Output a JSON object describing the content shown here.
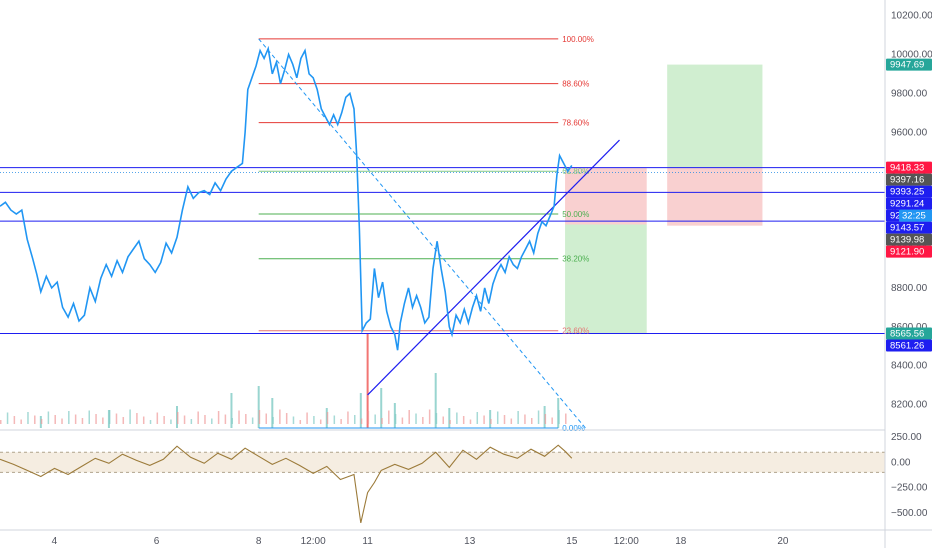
{
  "chart_data": {
    "type": "line",
    "price_scale": {
      "ylim": [
        8080,
        10280
      ],
      "ticks": [
        8200,
        8400,
        8600,
        8800,
        9000,
        9200,
        9400,
        9600,
        9800,
        10000,
        10200
      ],
      "tick_labels": [
        "8200.00",
        "8400.00",
        "8600.00",
        "8800.00",
        "9000.00",
        "9200.00",
        "9400.00",
        "9600.00",
        "9800.00",
        "10000.00",
        "10200.00"
      ]
    },
    "x_axis": {
      "ticks": [
        {
          "at": 4,
          "label": "4"
        },
        {
          "at": 11.5,
          "label": "6"
        },
        {
          "at": 19,
          "label": "8"
        },
        {
          "at": 23,
          "label": "12:00"
        },
        {
          "at": 27,
          "label": "11"
        },
        {
          "at": 34.5,
          "label": "13"
        },
        {
          "at": 42,
          "label": "15"
        },
        {
          "at": 46,
          "label": "12:00"
        },
        {
          "at": 50,
          "label": "18"
        },
        {
          "at": 57.5,
          "label": "20"
        }
      ],
      "xlim": [
        0,
        65
      ]
    },
    "price_series": {
      "name": "price",
      "color": "#2196f3",
      "points": [
        [
          0,
          9220
        ],
        [
          0.4,
          9240
        ],
        [
          0.8,
          9200
        ],
        [
          1.2,
          9180
        ],
        [
          1.6,
          9200
        ],
        [
          2,
          9050
        ],
        [
          2.4,
          8950
        ],
        [
          2.7,
          8870
        ],
        [
          3,
          8780
        ],
        [
          3.4,
          8860
        ],
        [
          3.8,
          8800
        ],
        [
          4.2,
          8830
        ],
        [
          4.6,
          8700
        ],
        [
          5,
          8650
        ],
        [
          5.4,
          8720
        ],
        [
          5.8,
          8630
        ],
        [
          6.2,
          8660
        ],
        [
          6.6,
          8800
        ],
        [
          7,
          8730
        ],
        [
          7.4,
          8850
        ],
        [
          7.8,
          8920
        ],
        [
          8.2,
          8860
        ],
        [
          8.6,
          8940
        ],
        [
          9,
          8880
        ],
        [
          9.4,
          8960
        ],
        [
          9.8,
          9000
        ],
        [
          10.2,
          9040
        ],
        [
          10.6,
          8950
        ],
        [
          11,
          8920
        ],
        [
          11.4,
          8880
        ],
        [
          11.8,
          8930
        ],
        [
          12.2,
          9030
        ],
        [
          12.6,
          8980
        ],
        [
          13,
          9060
        ],
        [
          13.4,
          9200
        ],
        [
          13.8,
          9320
        ],
        [
          14.2,
          9260
        ],
        [
          14.6,
          9290
        ],
        [
          15,
          9300
        ],
        [
          15.4,
          9280
        ],
        [
          15.8,
          9340
        ],
        [
          16.2,
          9300
        ],
        [
          16.6,
          9360
        ],
        [
          17,
          9400
        ],
        [
          17.4,
          9420
        ],
        [
          17.8,
          9440
        ],
        [
          18,
          9600
        ],
        [
          18.2,
          9820
        ],
        [
          18.5,
          9880
        ],
        [
          18.8,
          9940
        ],
        [
          19.1,
          10020
        ],
        [
          19.4,
          9980
        ],
        [
          19.7,
          10030
        ],
        [
          20,
          9900
        ],
        [
          20.3,
          9960
        ],
        [
          20.6,
          9850
        ],
        [
          20.9,
          9920
        ],
        [
          21.2,
          10000
        ],
        [
          21.5,
          9950
        ],
        [
          21.8,
          9880
        ],
        [
          22.1,
          9980
        ],
        [
          22.4,
          10020
        ],
        [
          22.7,
          9900
        ],
        [
          23,
          9880
        ],
        [
          23.3,
          9820
        ],
        [
          23.6,
          9720
        ],
        [
          23.9,
          9680
        ],
        [
          24.2,
          9640
        ],
        [
          24.5,
          9690
        ],
        [
          24.8,
          9640
        ],
        [
          25.1,
          9700
        ],
        [
          25.4,
          9780
        ],
        [
          25.7,
          9800
        ],
        [
          26,
          9720
        ],
        [
          26.2,
          9480
        ],
        [
          26.4,
          9100
        ],
        [
          26.6,
          8580
        ],
        [
          26.9,
          8620
        ],
        [
          27.2,
          8640
        ],
        [
          27.5,
          8900
        ],
        [
          27.8,
          8750
        ],
        [
          28.1,
          8830
        ],
        [
          28.4,
          8680
        ],
        [
          28.7,
          8600
        ],
        [
          29,
          8560
        ],
        [
          29.2,
          8480
        ],
        [
          29.4,
          8620
        ],
        [
          29.7,
          8720
        ],
        [
          30,
          8800
        ],
        [
          30.3,
          8700
        ],
        [
          30.6,
          8760
        ],
        [
          30.9,
          8700
        ],
        [
          31.2,
          8620
        ],
        [
          31.5,
          8650
        ],
        [
          31.8,
          8900
        ],
        [
          32.1,
          9040
        ],
        [
          32.4,
          8900
        ],
        [
          32.7,
          8780
        ],
        [
          33,
          8600
        ],
        [
          33.2,
          8560
        ],
        [
          33.5,
          8660
        ],
        [
          33.8,
          8620
        ],
        [
          34.1,
          8690
        ],
        [
          34.4,
          8620
        ],
        [
          34.7,
          8700
        ],
        [
          35,
          8760
        ],
        [
          35.3,
          8680
        ],
        [
          35.6,
          8800
        ],
        [
          35.9,
          8720
        ],
        [
          36.2,
          8820
        ],
        [
          36.5,
          8880
        ],
        [
          36.8,
          8920
        ],
        [
          37.1,
          8880
        ],
        [
          37.4,
          8960
        ],
        [
          37.7,
          8920
        ],
        [
          38,
          8900
        ],
        [
          38.3,
          8960
        ],
        [
          38.6,
          9000
        ],
        [
          38.9,
          9040
        ],
        [
          39.2,
          8980
        ],
        [
          39.5,
          9080
        ],
        [
          39.8,
          9140
        ],
        [
          40.1,
          9120
        ],
        [
          40.4,
          9170
        ],
        [
          40.7,
          9220
        ],
        [
          40.9,
          9380
        ],
        [
          41.1,
          9480
        ],
        [
          41.4,
          9440
        ],
        [
          41.7,
          9400
        ],
        [
          42,
          9430
        ]
      ]
    },
    "rsi_series": {
      "name": "rsi",
      "color": "#9c7b3a",
      "ylim": [
        -650,
        320
      ],
      "ticks": [
        250,
        0,
        -250,
        -500
      ],
      "tick_labels": [
        "250.00",
        "0.00",
        "−250.00",
        "−500.00"
      ],
      "band": [
        100,
        -100
      ],
      "points": [
        [
          0,
          30
        ],
        [
          1,
          -20
        ],
        [
          2,
          -80
        ],
        [
          3,
          -140
        ],
        [
          4,
          -60
        ],
        [
          5,
          -120
        ],
        [
          6,
          -40
        ],
        [
          7,
          40
        ],
        [
          8,
          -10
        ],
        [
          9,
          80
        ],
        [
          10,
          20
        ],
        [
          11,
          -30
        ],
        [
          12,
          30
        ],
        [
          13,
          160
        ],
        [
          14,
          50
        ],
        [
          15,
          -10
        ],
        [
          16,
          90
        ],
        [
          17,
          30
        ],
        [
          18,
          140
        ],
        [
          19,
          60
        ],
        [
          20,
          -20
        ],
        [
          21,
          40
        ],
        [
          22,
          -30
        ],
        [
          23,
          -110
        ],
        [
          24,
          -40
        ],
        [
          25,
          -170
        ],
        [
          26,
          -120
        ],
        [
          26.5,
          -600
        ],
        [
          27,
          -300
        ],
        [
          27.5,
          -200
        ],
        [
          28,
          -80
        ],
        [
          29,
          -20
        ],
        [
          30,
          -70
        ],
        [
          31,
          -10
        ],
        [
          32,
          100
        ],
        [
          33,
          -50
        ],
        [
          34,
          120
        ],
        [
          35,
          30
        ],
        [
          36,
          150
        ],
        [
          37,
          80
        ],
        [
          38,
          40
        ],
        [
          39,
          130
        ],
        [
          40,
          60
        ],
        [
          41,
          170
        ],
        [
          41.5,
          110
        ],
        [
          42,
          40
        ]
      ]
    },
    "volume_bars": [
      [
        3,
        12
      ],
      [
        8,
        18
      ],
      [
        13,
        22
      ],
      [
        17,
        35
      ],
      [
        19,
        42
      ],
      [
        20,
        30
      ],
      [
        24,
        20
      ],
      [
        26.5,
        35
      ],
      [
        27,
        95
      ],
      [
        28,
        40
      ],
      [
        29,
        25
      ],
      [
        32,
        55
      ],
      [
        33,
        20
      ],
      [
        36,
        18
      ],
      [
        40,
        22
      ],
      [
        41,
        30
      ]
    ],
    "horizontal_lines": [
      9418.33,
      9291.24,
      9143.57,
      8565.56
    ],
    "price_badges": [
      {
        "value": 9947.69,
        "label": "9947.69",
        "color": "#26a69a"
      },
      {
        "value": 9418.33,
        "label": "9418.33",
        "color": "#ff1744"
      },
      {
        "value": 9397.16,
        "label": "9397.16",
        "color": "#555555"
      },
      {
        "value": 9393.25,
        "label": "9393.25",
        "color": "#1e1ef0"
      },
      {
        "value": 9291.24,
        "label": "9291.24",
        "color": "#1e1ef0"
      },
      {
        "value": 9246.64,
        "label": "9246.64",
        "color": "#1e1ef0"
      },
      {
        "value": 9143.57,
        "label": "9143.57",
        "color": "#1e1ef0"
      },
      {
        "value": 9139.98,
        "label": "9139.98",
        "color": "#555555"
      },
      {
        "value": 9121.9,
        "label": "9121.90",
        "color": "#ff1744"
      },
      {
        "value": 8565.56,
        "label": "8565.56",
        "color": "#26a69a"
      },
      {
        "value": 8561.26,
        "label": "8561.26",
        "color": "#1e1ef0"
      }
    ],
    "countdown_badge": {
      "label": "32:25",
      "color": "#2196f3"
    },
    "fib_levels": [
      {
        "label": "100.00%",
        "price": 10080,
        "color": "#e53935"
      },
      {
        "label": "88.60%",
        "price": 9850,
        "color": "#e53935"
      },
      {
        "label": "78.60%",
        "price": 9650,
        "color": "#e53935"
      },
      {
        "label": "61.80%",
        "price": 9400,
        "color": "#81c784"
      },
      {
        "label": "50.00%",
        "price": 9180,
        "color": "#4caf50"
      },
      {
        "label": "38.20%",
        "price": 8950,
        "color": "#4caf50"
      },
      {
        "label": "23.60%",
        "price": 8580,
        "color": "#e57373"
      },
      {
        "label": "0.00%",
        "price": 8080,
        "color": "#2196f3"
      }
    ],
    "fib_x": [
      19,
      41
    ],
    "trendline": {
      "from": [
        27,
        8250
      ],
      "to": [
        45.5,
        9560
      ],
      "color": "#1e1ef0"
    },
    "diagonal_dashed": {
      "from": [
        19,
        10080
      ],
      "to": [
        43,
        8080
      ],
      "color": "#2196f3"
    },
    "positions": [
      {
        "x": [
          41.5,
          47.5
        ],
        "stop": [
          9126,
          9418
        ],
        "target": [
          8566,
          9126
        ],
        "stop_color": "#f8c8c8",
        "target_color": "#c8ebc8"
      },
      {
        "x": [
          49,
          56
        ],
        "stop": [
          9120,
          9418
        ],
        "target": [
          9418,
          9948
        ],
        "stop_color": "#f8c8c8",
        "target_color": "#c8ebc8"
      }
    ]
  }
}
